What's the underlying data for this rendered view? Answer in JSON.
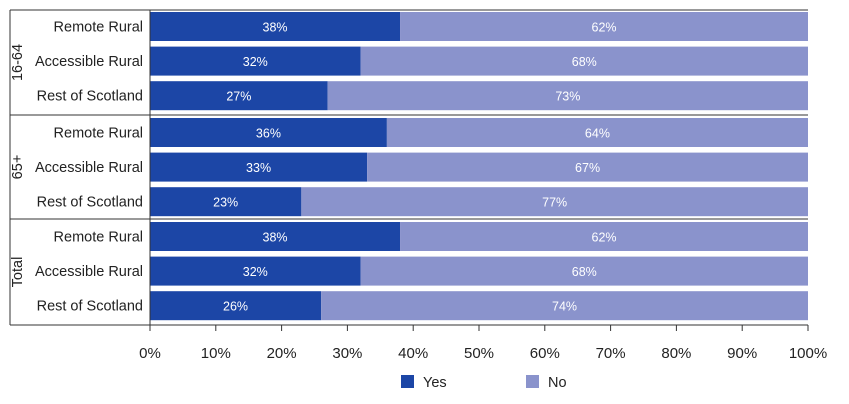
{
  "chart_data": {
    "type": "bar",
    "orientation": "horizontal",
    "stacked": true,
    "title": "",
    "xlabel": "",
    "ylabel": "",
    "xlim": [
      0,
      100
    ],
    "x_ticks": [
      "0%",
      "10%",
      "20%",
      "30%",
      "40%",
      "50%",
      "60%",
      "70%",
      "80%",
      "90%",
      "100%"
    ],
    "groups": [
      {
        "name": "16-64",
        "rows": [
          {
            "category": "Remote Rural",
            "yes": 38,
            "no": 62
          },
          {
            "category": "Accessible Rural",
            "yes": 32,
            "no": 68
          },
          {
            "category": "Rest of Scotland",
            "yes": 27,
            "no": 73
          }
        ]
      },
      {
        "name": "65+",
        "rows": [
          {
            "category": "Remote Rural",
            "yes": 36,
            "no": 64
          },
          {
            "category": "Accessible Rural",
            "yes": 33,
            "no": 67
          },
          {
            "category": "Rest of Scotland",
            "yes": 23,
            "no": 77
          }
        ]
      },
      {
        "name": "Total",
        "rows": [
          {
            "category": "Remote Rural",
            "yes": 38,
            "no": 62
          },
          {
            "category": "Accessible Rural",
            "yes": 32,
            "no": 68
          },
          {
            "category": "Rest of Scotland",
            "yes": 26,
            "no": 74
          }
        ]
      }
    ],
    "series": [
      {
        "key": "yes",
        "name": "Yes",
        "color": "#1c46a6"
      },
      {
        "key": "no",
        "name": "No",
        "color": "#8a93cc"
      }
    ],
    "legend": "bottom",
    "grid": false,
    "value_suffix": "%"
  }
}
